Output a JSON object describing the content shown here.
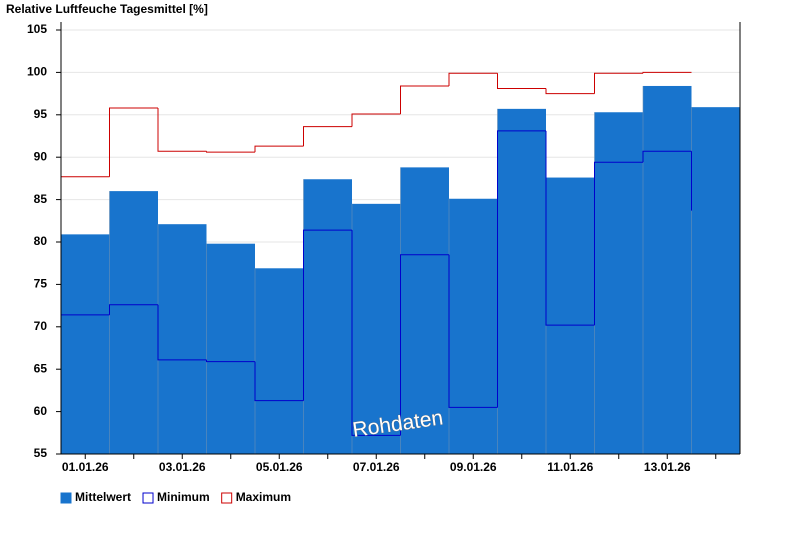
{
  "chart_data": {
    "type": "bar",
    "title": "Relative Luftfeuche Tagesmittel [%]",
    "categories": [
      "01.01.26",
      null,
      "03.01.26",
      null,
      "05.01.26",
      null,
      "07.01.26",
      null,
      "09.01.26",
      null,
      "11.01.26",
      null,
      "13.01.26",
      null
    ],
    "series": [
      {
        "name": "Mittelwert",
        "color": "#1874cd",
        "kind": "bar",
        "values": [
          80.9,
          86.0,
          82.1,
          79.8,
          76.9,
          87.4,
          84.5,
          88.8,
          85.1,
          95.7,
          87.6,
          95.3,
          98.4,
          95.9
        ]
      },
      {
        "name": "Minimum",
        "color": "#0000cc",
        "kind": "step",
        "values": [
          71.4,
          72.6,
          66.1,
          65.9,
          61.3,
          81.4,
          57.2,
          78.5,
          60.5,
          93.1,
          70.2,
          89.4,
          90.7,
          83.7
        ]
      },
      {
        "name": "Maximum",
        "color": "#cc0000",
        "kind": "step",
        "values": [
          87.7,
          95.8,
          90.7,
          90.6,
          91.3,
          93.6,
          95.1,
          98.4,
          99.9,
          98.1,
          97.5,
          99.9,
          100.0,
          null
        ]
      }
    ],
    "ylim": [
      55,
      105
    ],
    "yticks": [
      55,
      60,
      65,
      70,
      75,
      80,
      85,
      90,
      95,
      100,
      105
    ],
    "grid": true,
    "watermark": "Rohdaten"
  }
}
